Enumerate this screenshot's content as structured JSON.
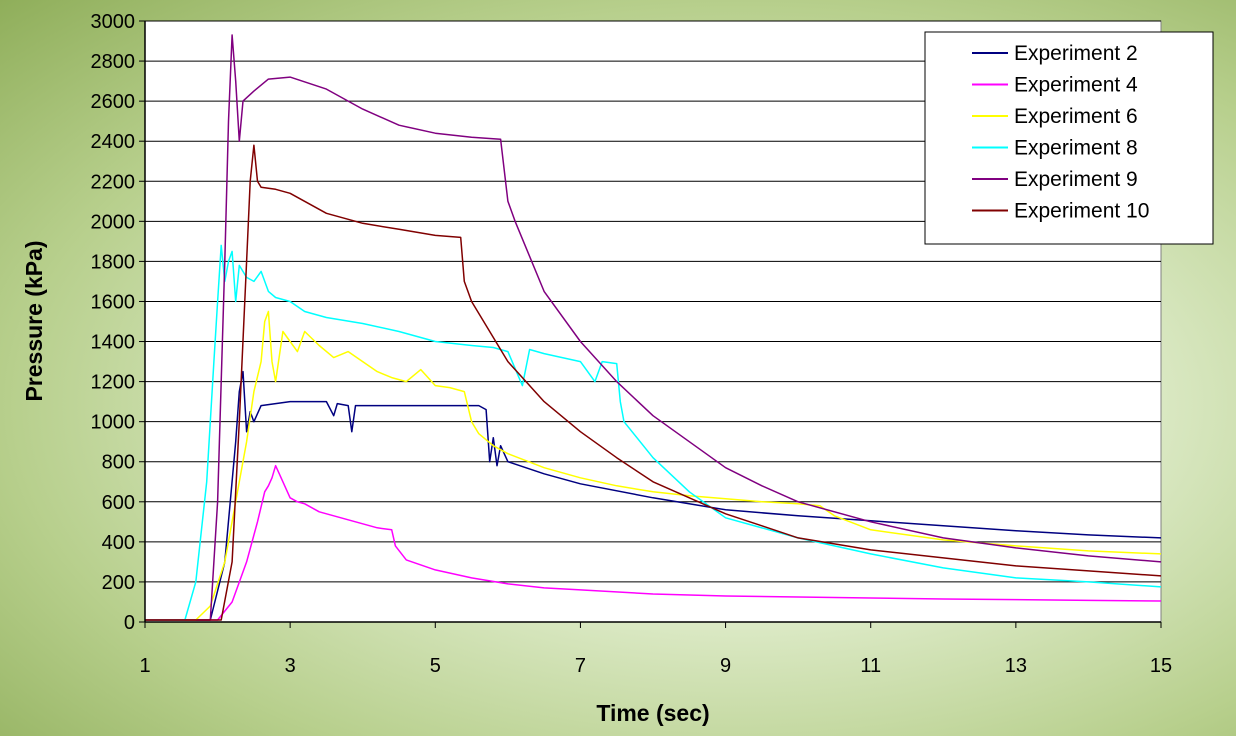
{
  "chart_data": {
    "type": "line",
    "title": "",
    "xlabel": "Time (sec)",
    "ylabel": "Pressure (kPa)",
    "xlim": [
      1,
      15
    ],
    "ylim": [
      0,
      3000
    ],
    "x_ticks": [
      1,
      3,
      5,
      7,
      9,
      11,
      13,
      15
    ],
    "y_ticks": [
      0,
      200,
      400,
      600,
      800,
      1000,
      1200,
      1400,
      1600,
      1800,
      2000,
      2200,
      2400,
      2600,
      2800,
      3000
    ],
    "x_tick_labels": [
      "1",
      "3",
      "5",
      "7",
      "9",
      "11",
      "13",
      "15"
    ],
    "y_tick_labels": [
      "0",
      "200",
      "400",
      "600",
      "800",
      "1000",
      "1200",
      "1400",
      "1600",
      "1800",
      "2000",
      "2200",
      "2400",
      "2600",
      "2800",
      "3000"
    ],
    "grid": "horizontal",
    "legend_position": "top-right",
    "series": [
      {
        "name": "Experiment 2",
        "color": "#000080",
        "points": [
          [
            1,
            10
          ],
          [
            1.9,
            10
          ],
          [
            2.1,
            300
          ],
          [
            2.25,
            900
          ],
          [
            2.3,
            1150
          ],
          [
            2.35,
            1250
          ],
          [
            2.4,
            950
          ],
          [
            2.45,
            1050
          ],
          [
            2.5,
            1000
          ],
          [
            2.6,
            1080
          ],
          [
            2.8,
            1090
          ],
          [
            3,
            1100
          ],
          [
            3.5,
            1100
          ],
          [
            3.6,
            1030
          ],
          [
            3.65,
            1090
          ],
          [
            3.8,
            1080
          ],
          [
            3.85,
            950
          ],
          [
            3.9,
            1080
          ],
          [
            4.5,
            1080
          ],
          [
            5,
            1080
          ],
          [
            5.6,
            1080
          ],
          [
            5.7,
            1060
          ],
          [
            5.75,
            800
          ],
          [
            5.8,
            920
          ],
          [
            5.85,
            780
          ],
          [
            5.9,
            880
          ],
          [
            6,
            800
          ],
          [
            6.5,
            740
          ],
          [
            7,
            690
          ],
          [
            8,
            620
          ],
          [
            9,
            560
          ],
          [
            10,
            530
          ],
          [
            11,
            505
          ],
          [
            12,
            480
          ],
          [
            13,
            455
          ],
          [
            14,
            435
          ],
          [
            15,
            420
          ]
        ]
      },
      {
        "name": "Experiment 4",
        "color": "#FF00FF",
        "points": [
          [
            1,
            10
          ],
          [
            2,
            10
          ],
          [
            2.2,
            100
          ],
          [
            2.4,
            300
          ],
          [
            2.55,
            500
          ],
          [
            2.65,
            650
          ],
          [
            2.7,
            680
          ],
          [
            2.75,
            720
          ],
          [
            2.8,
            780
          ],
          [
            2.85,
            740
          ],
          [
            2.9,
            700
          ],
          [
            3,
            620
          ],
          [
            3.1,
            600
          ],
          [
            3.2,
            590
          ],
          [
            3.4,
            550
          ],
          [
            3.6,
            530
          ],
          [
            3.8,
            510
          ],
          [
            4,
            490
          ],
          [
            4.2,
            470
          ],
          [
            4.4,
            460
          ],
          [
            4.45,
            380
          ],
          [
            4.6,
            310
          ],
          [
            5,
            260
          ],
          [
            5.5,
            220
          ],
          [
            6,
            190
          ],
          [
            6.5,
            170
          ],
          [
            7,
            160
          ],
          [
            8,
            140
          ],
          [
            9,
            130
          ],
          [
            10,
            125
          ],
          [
            11,
            120
          ],
          [
            12,
            115
          ],
          [
            13,
            112
          ],
          [
            14,
            108
          ],
          [
            15,
            105
          ]
        ]
      },
      {
        "name": "Experiment 6",
        "color": "#FFFF00",
        "points": [
          [
            1,
            10
          ],
          [
            1.7,
            10
          ],
          [
            1.9,
            80
          ],
          [
            2.1,
            300
          ],
          [
            2.3,
            700
          ],
          [
            2.4,
            900
          ],
          [
            2.5,
            1150
          ],
          [
            2.6,
            1300
          ],
          [
            2.65,
            1500
          ],
          [
            2.7,
            1550
          ],
          [
            2.75,
            1300
          ],
          [
            2.8,
            1200
          ],
          [
            2.9,
            1450
          ],
          [
            3,
            1400
          ],
          [
            3.1,
            1350
          ],
          [
            3.2,
            1450
          ],
          [
            3.4,
            1380
          ],
          [
            3.6,
            1320
          ],
          [
            3.8,
            1350
          ],
          [
            4,
            1300
          ],
          [
            4.2,
            1250
          ],
          [
            4.4,
            1220
          ],
          [
            4.6,
            1200
          ],
          [
            4.8,
            1260
          ],
          [
            5,
            1180
          ],
          [
            5.2,
            1170
          ],
          [
            5.4,
            1150
          ],
          [
            5.5,
            1000
          ],
          [
            5.6,
            940
          ],
          [
            5.8,
            880
          ],
          [
            6,
            840
          ],
          [
            6.5,
            770
          ],
          [
            7,
            720
          ],
          [
            7.5,
            680
          ],
          [
            8,
            650
          ],
          [
            8.5,
            630
          ],
          [
            9,
            615
          ],
          [
            9.5,
            600
          ],
          [
            10,
            590
          ],
          [
            10.3,
            580
          ],
          [
            10.5,
            530
          ],
          [
            11,
            460
          ],
          [
            12,
            410
          ],
          [
            13,
            380
          ],
          [
            14,
            355
          ],
          [
            15,
            340
          ]
        ]
      },
      {
        "name": "Experiment 8",
        "color": "#00FFFF",
        "points": [
          [
            1,
            10
          ],
          [
            1.55,
            10
          ],
          [
            1.7,
            200
          ],
          [
            1.85,
            700
          ],
          [
            1.95,
            1300
          ],
          [
            2,
            1600
          ],
          [
            2.05,
            1880
          ],
          [
            2.1,
            1700
          ],
          [
            2.15,
            1800
          ],
          [
            2.2,
            1850
          ],
          [
            2.25,
            1600
          ],
          [
            2.3,
            1780
          ],
          [
            2.4,
            1720
          ],
          [
            2.5,
            1700
          ],
          [
            2.6,
            1750
          ],
          [
            2.7,
            1650
          ],
          [
            2.8,
            1620
          ],
          [
            3,
            1600
          ],
          [
            3.2,
            1550
          ],
          [
            3.5,
            1520
          ],
          [
            4,
            1490
          ],
          [
            4.5,
            1450
          ],
          [
            5,
            1400
          ],
          [
            5.5,
            1380
          ],
          [
            5.8,
            1370
          ],
          [
            6,
            1350
          ],
          [
            6.2,
            1180
          ],
          [
            6.3,
            1360
          ],
          [
            6.5,
            1340
          ],
          [
            7,
            1300
          ],
          [
            7.2,
            1200
          ],
          [
            7.3,
            1300
          ],
          [
            7.5,
            1290
          ],
          [
            7.55,
            1100
          ],
          [
            7.6,
            1000
          ],
          [
            8,
            820
          ],
          [
            8.5,
            650
          ],
          [
            9,
            520
          ],
          [
            10,
            420
          ],
          [
            11,
            340
          ],
          [
            12,
            270
          ],
          [
            13,
            220
          ],
          [
            14,
            200
          ],
          [
            15,
            175
          ]
        ]
      },
      {
        "name": "Experiment 9",
        "color": "#800080",
        "points": [
          [
            1,
            10
          ],
          [
            1.9,
            10
          ],
          [
            2,
            600
          ],
          [
            2.1,
            1800
          ],
          [
            2.15,
            2500
          ],
          [
            2.2,
            2930
          ],
          [
            2.25,
            2700
          ],
          [
            2.3,
            2400
          ],
          [
            2.35,
            2600
          ],
          [
            2.5,
            2650
          ],
          [
            2.7,
            2710
          ],
          [
            3,
            2720
          ],
          [
            3.5,
            2660
          ],
          [
            4,
            2560
          ],
          [
            4.5,
            2480
          ],
          [
            5,
            2440
          ],
          [
            5.5,
            2420
          ],
          [
            5.9,
            2410
          ],
          [
            6,
            2100
          ],
          [
            6.1,
            2000
          ],
          [
            6.5,
            1650
          ],
          [
            7,
            1400
          ],
          [
            7.5,
            1200
          ],
          [
            8,
            1030
          ],
          [
            8.5,
            900
          ],
          [
            9,
            770
          ],
          [
            9.5,
            680
          ],
          [
            10,
            600
          ],
          [
            11,
            500
          ],
          [
            12,
            420
          ],
          [
            13,
            370
          ],
          [
            14,
            330
          ],
          [
            15,
            300
          ]
        ]
      },
      {
        "name": "Experiment 10",
        "color": "#800000",
        "points": [
          [
            1,
            10
          ],
          [
            2.05,
            10
          ],
          [
            2.2,
            300
          ],
          [
            2.3,
            1000
          ],
          [
            2.4,
            1800
          ],
          [
            2.45,
            2200
          ],
          [
            2.5,
            2380
          ],
          [
            2.55,
            2200
          ],
          [
            2.6,
            2170
          ],
          [
            2.8,
            2160
          ],
          [
            3,
            2140
          ],
          [
            3.5,
            2040
          ],
          [
            4,
            1990
          ],
          [
            4.5,
            1960
          ],
          [
            5,
            1930
          ],
          [
            5.35,
            1920
          ],
          [
            5.4,
            1700
          ],
          [
            5.5,
            1600
          ],
          [
            6,
            1300
          ],
          [
            6.5,
            1100
          ],
          [
            7,
            950
          ],
          [
            7.5,
            820
          ],
          [
            8,
            700
          ],
          [
            8.5,
            620
          ],
          [
            9,
            540
          ],
          [
            9.5,
            480
          ],
          [
            10,
            420
          ],
          [
            11,
            360
          ],
          [
            12,
            320
          ],
          [
            13,
            280
          ],
          [
            14,
            255
          ],
          [
            15,
            230
          ]
        ]
      }
    ]
  }
}
